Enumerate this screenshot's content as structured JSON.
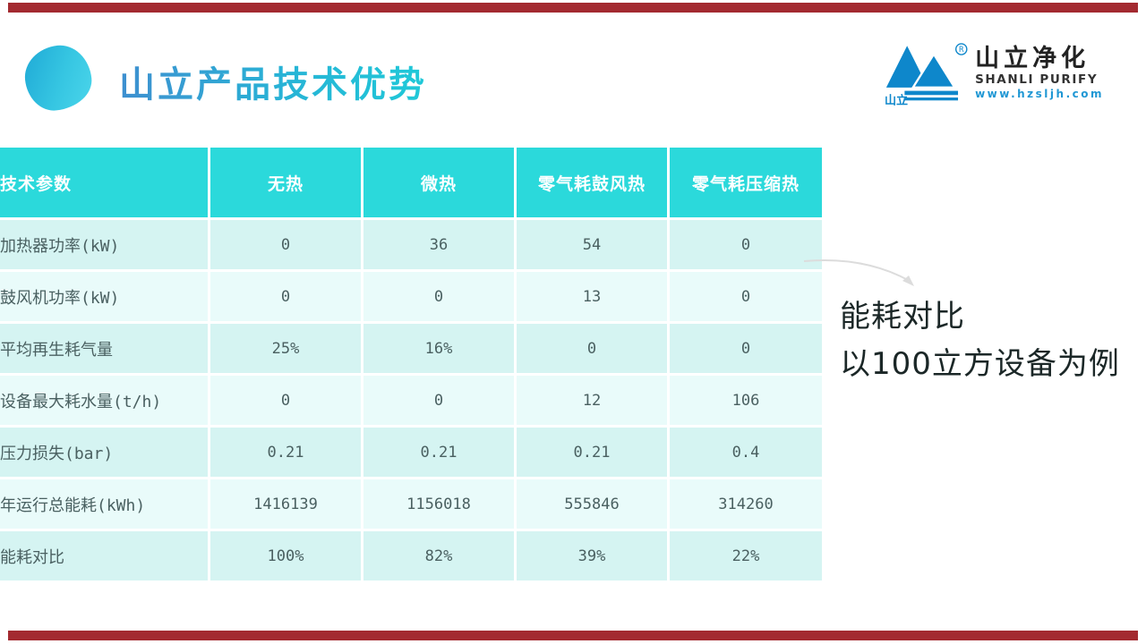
{
  "slide": {
    "title": "山立产品技术优势",
    "annotation_line1": "能耗对比",
    "annotation_line2": "以100立方设备为例"
  },
  "logo": {
    "cn_small": "山立",
    "name_cn": "山立净化",
    "name_en": "SHANLI PURIFY",
    "website": "www.hzsljh.com",
    "registered_mark": "R"
  },
  "table": {
    "headers": [
      "技术参数",
      "无热",
      "微热",
      "零气耗鼓风热",
      "零气耗压缩热"
    ],
    "rows": [
      {
        "label": "加热器功率(kW)",
        "values": [
          "0",
          "36",
          "54",
          "0"
        ]
      },
      {
        "label": "鼓风机功率(kW)",
        "values": [
          "0",
          "0",
          "13",
          "0"
        ]
      },
      {
        "label": "平均再生耗气量",
        "values": [
          "25%",
          "16%",
          "0",
          "0"
        ]
      },
      {
        "label": "设备最大耗水量(t/h)",
        "values": [
          "0",
          "0",
          "12",
          "106"
        ]
      },
      {
        "label": "压力损失(bar)",
        "values": [
          "0.21",
          "0.21",
          "0.21",
          "0.4"
        ]
      },
      {
        "label": "年运行总能耗(kWh)",
        "values": [
          "1416139",
          "1156018",
          "555846",
          "314260"
        ]
      },
      {
        "label": "能耗对比",
        "values": [
          "100%",
          "82%",
          "39%",
          "22%"
        ]
      }
    ]
  },
  "colors": {
    "accent_bar": "#a32a30",
    "header_teal": "#2bd9db",
    "row_odd": "#d5f4f2",
    "row_even": "#e9fbfa",
    "logo_blue": "#0e87cb",
    "title_gradient_start": "#3e8fd0",
    "title_gradient_end": "#1fc9d8",
    "cell_text": "#4a6061",
    "arrow_gray": "#dcdcdc"
  }
}
